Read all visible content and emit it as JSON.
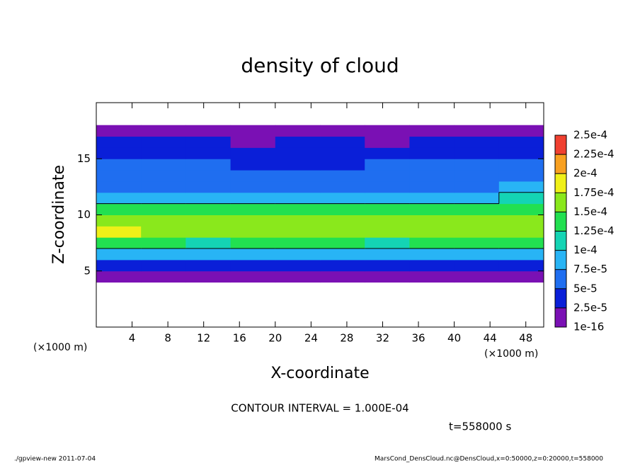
{
  "chart_data": {
    "type": "heatmap",
    "title": "density of cloud",
    "xlabel": "X-coordinate",
    "ylabel": "Z-coordinate",
    "xunit": "(×1000 m)",
    "yunit": "(×1000 m)",
    "contour_interval": {
      "value": 0.0001,
      "label": "CONTOUR INTERVAL = 1.000E-04"
    },
    "time_label": "t=558000 s",
    "footer_left": "./gpview-new  2011-07-04",
    "footer_right": "MarsCond_DensCloud.nc@DensCloud,x=0:50000,z=0:20000,t=558000",
    "xlim": [
      0,
      50
    ],
    "ylim": [
      0,
      20
    ],
    "xticks": [
      4,
      8,
      12,
      16,
      20,
      24,
      28,
      32,
      36,
      40,
      44,
      48
    ],
    "yticks": [
      5,
      10,
      15
    ],
    "xbins": [
      0,
      5,
      10,
      15,
      20,
      25,
      30,
      35,
      40,
      45,
      50
    ],
    "zbins": [
      0,
      1,
      2,
      3,
      4,
      5,
      6,
      7,
      8,
      9,
      10,
      11,
      12,
      13,
      14,
      15,
      16,
      17,
      18,
      19,
      20
    ],
    "colorbar_ticks": [
      {
        "value": 1e-16,
        "label": "1e-16"
      },
      {
        "value": 2.5e-05,
        "label": "2.5e-5"
      },
      {
        "value": 5e-05,
        "label": "5e-5"
      },
      {
        "value": 7.5e-05,
        "label": "7.5e-5"
      },
      {
        "value": 0.0001,
        "label": "1e-4"
      },
      {
        "value": 0.000125,
        "label": "1.25e-4"
      },
      {
        "value": 0.00015,
        "label": "1.5e-4"
      },
      {
        "value": 0.000175,
        "label": "1.75e-4"
      },
      {
        "value": 0.0002,
        "label": "2e-4"
      },
      {
        "value": 0.000225,
        "label": "2.25e-4"
      },
      {
        "value": 0.00025,
        "label": "2.5e-4"
      }
    ],
    "colors": [
      "#7a10b4",
      "#0a1fd8",
      "#1f6ef0",
      "#28b4f5",
      "#14d4b4",
      "#22e050",
      "#8ae81c",
      "#f0f018",
      "#f8a020",
      "#f04030"
    ],
    "values": [
      [
        null,
        null,
        null,
        null,
        null,
        null,
        null,
        null,
        null,
        null
      ],
      [
        null,
        null,
        null,
        null,
        null,
        null,
        null,
        null,
        null,
        null
      ],
      [
        null,
        null,
        null,
        null,
        null,
        null,
        null,
        null,
        null,
        null
      ],
      [
        null,
        null,
        null,
        null,
        null,
        null,
        null,
        null,
        null,
        null
      ],
      [
        1.2e-05,
        1.2e-05,
        1.3e-05,
        1.5e-05,
        1.3e-05,
        1.2e-05,
        1.3e-05,
        1.4e-05,
        1.2e-05,
        1.2e-05
      ],
      [
        3e-05,
        2.8e-05,
        2.6e-05,
        2.9e-05,
        3e-05,
        2.7e-05,
        2.8e-05,
        3e-05,
        2.6e-05,
        2.7e-05
      ],
      [
        8.5e-05,
        8e-05,
        7.5e-05,
        8e-05,
        8.5e-05,
        8e-05,
        7.8e-05,
        8.2e-05,
        8e-05,
        8.5e-05
      ],
      [
        0.000135,
        0.00013,
        0.00012,
        0.000125,
        0.00013,
        0.000125,
        0.00012,
        0.000125,
        0.00013,
        0.00013
      ],
      [
        0.000175,
        0.00017,
        0.000155,
        0.000155,
        0.00016,
        0.000165,
        0.000155,
        0.00016,
        0.00016,
        0.00017
      ],
      [
        0.00017,
        0.000165,
        0.00015,
        0.000155,
        0.000155,
        0.00016,
        0.00015,
        0.000155,
        0.00015,
        0.00016
      ],
      [
        0.00013,
        0.00013,
        0.000125,
        0.000125,
        0.00013,
        0.00013,
        0.000125,
        0.00013,
        0.00013,
        0.000135
      ],
      [
        8.5e-05,
        9e-05,
        9e-05,
        8.5e-05,
        9e-05,
        8.5e-05,
        8.5e-05,
        8.5e-05,
        9.5e-05,
        0.000105
      ],
      [
        6.5e-05,
        6.5e-05,
        6e-05,
        6e-05,
        6e-05,
        6e-05,
        6e-05,
        6e-05,
        7e-05,
        8e-05
      ],
      [
        5.5e-05,
        5.5e-05,
        5.5e-05,
        5e-05,
        5e-05,
        5e-05,
        5.5e-05,
        5.5e-05,
        6e-05,
        6.5e-05
      ],
      [
        5e-05,
        5e-05,
        5e-05,
        4.5e-05,
        4.5e-05,
        4.5e-05,
        5e-05,
        5.5e-05,
        5.5e-05,
        5.5e-05
      ],
      [
        4.5e-05,
        4.5e-05,
        4e-05,
        4e-05,
        4e-05,
        4e-05,
        4e-05,
        4.5e-05,
        4.5e-05,
        4.5e-05
      ],
      [
        2.5e-05,
        2.5e-05,
        2.5e-05,
        2.3e-05,
        2.5e-05,
        2.5e-05,
        2.4e-05,
        2.5e-05,
        2.5e-05,
        2.6e-05
      ],
      [
        1e-05,
        9e-06,
        9e-06,
        1e-05,
        1e-05,
        9e-06,
        1e-05,
        9e-06,
        9e-06,
        1e-05
      ],
      [
        null,
        null,
        null,
        null,
        null,
        null,
        null,
        null,
        null,
        null
      ],
      [
        null,
        null,
        null,
        null,
        null,
        null,
        null,
        null,
        null,
        null
      ]
    ]
  }
}
